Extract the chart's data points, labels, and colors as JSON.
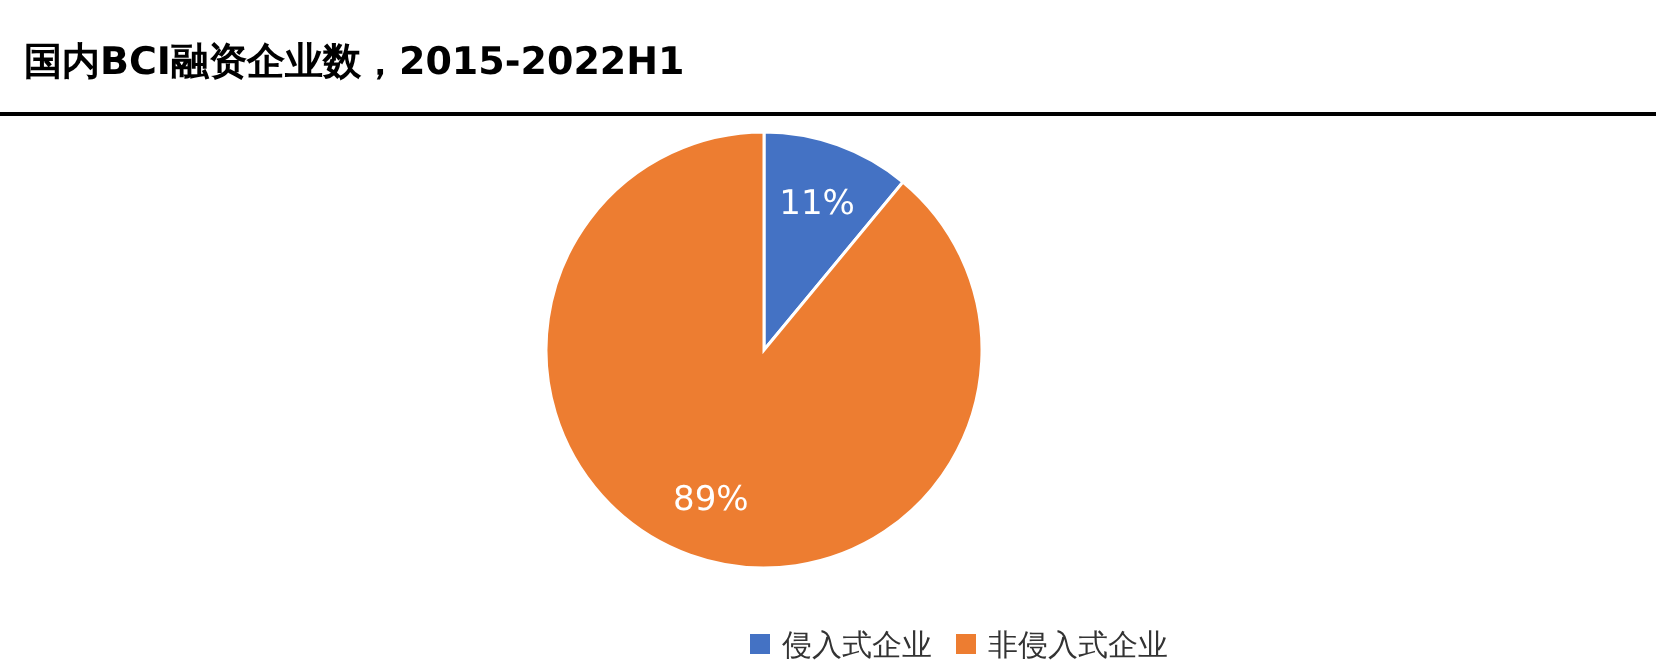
{
  "chart_data": {
    "type": "pie",
    "title": "国内BCI融资企业数，2015-2022H1",
    "categories": [
      "侵入式企业",
      "非侵入式企业"
    ],
    "values": [
      11,
      89
    ],
    "colors": [
      "#4472c4",
      "#ed7d31"
    ],
    "value_labels": [
      "11%",
      "89%"
    ],
    "legend": "bottom"
  }
}
